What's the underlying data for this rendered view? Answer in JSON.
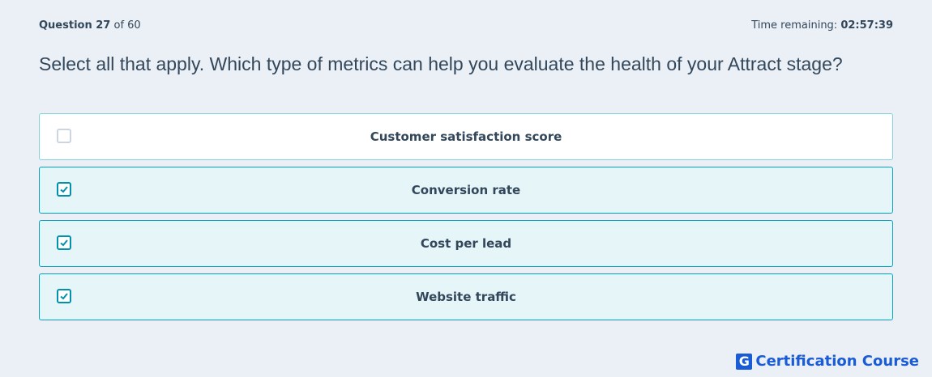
{
  "header": {
    "question_label": "Question 27",
    "question_total": "of 60",
    "time_label": "Time remaining:",
    "time_value": "02:57:39"
  },
  "question": {
    "text": "Select all that apply. Which type of metrics can help you evaluate the health of your Attract stage?"
  },
  "options": [
    {
      "label": "Customer satisfaction score",
      "checked": false
    },
    {
      "label": "Conversion rate",
      "checked": true
    },
    {
      "label": "Cost per lead",
      "checked": true
    },
    {
      "label": "Website traffic",
      "checked": true
    }
  ],
  "footer": {
    "logo_letter": "G",
    "brand": "Certification Course"
  }
}
